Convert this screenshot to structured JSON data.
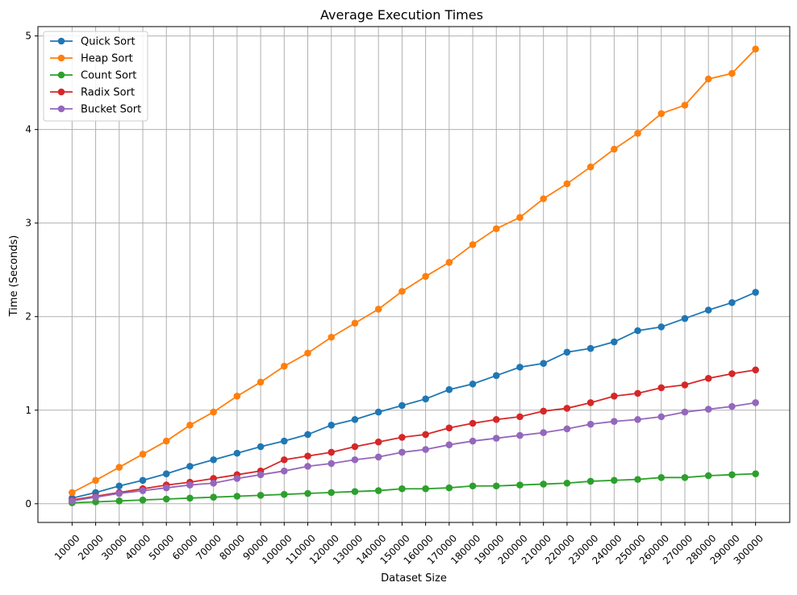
{
  "chart_data": {
    "type": "line",
    "title": "Average Execution Times",
    "xlabel": "Dataset Size",
    "ylabel": "Time (Seconds)",
    "x": [
      10000,
      20000,
      30000,
      40000,
      50000,
      60000,
      70000,
      80000,
      90000,
      100000,
      110000,
      120000,
      130000,
      140000,
      150000,
      160000,
      170000,
      180000,
      190000,
      200000,
      210000,
      220000,
      230000,
      240000,
      250000,
      260000,
      270000,
      280000,
      290000,
      300000
    ],
    "x_tick_labels": [
      "10000",
      "20000",
      "30000",
      "40000",
      "50000",
      "60000",
      "70000",
      "80000",
      "90000",
      "100000",
      "110000",
      "120000",
      "130000",
      "140000",
      "150000",
      "160000",
      "170000",
      "180000",
      "190000",
      "200000",
      "210000",
      "220000",
      "230000",
      "240000",
      "250000",
      "260000",
      "270000",
      "280000",
      "290000",
      "300000"
    ],
    "y_ticks": [
      0,
      1,
      2,
      3,
      4,
      5
    ],
    "y_tick_labels": [
      "0",
      "1",
      "2",
      "3",
      "4",
      "5"
    ],
    "ylim": [
      -0.2,
      5.1
    ],
    "grid": true,
    "legend_position": "top-left",
    "series": [
      {
        "name": "Quick Sort",
        "color": "#1f77b4",
        "values": [
          0.06,
          0.12,
          0.19,
          0.25,
          0.32,
          0.4,
          0.47,
          0.54,
          0.61,
          0.67,
          0.74,
          0.84,
          0.9,
          0.98,
          1.05,
          1.12,
          1.22,
          1.28,
          1.37,
          1.46,
          1.5,
          1.62,
          1.66,
          1.73,
          1.85,
          1.89,
          1.98,
          2.07,
          2.15,
          2.26
        ]
      },
      {
        "name": "Heap Sort",
        "color": "#ff7f0e",
        "values": [
          0.12,
          0.25,
          0.39,
          0.53,
          0.67,
          0.84,
          0.98,
          1.15,
          1.3,
          1.47,
          1.61,
          1.78,
          1.93,
          2.08,
          2.27,
          2.43,
          2.58,
          2.77,
          2.94,
          3.06,
          3.26,
          3.42,
          3.6,
          3.79,
          3.96,
          4.17,
          4.26,
          4.54,
          4.6,
          4.86
        ]
      },
      {
        "name": "Count Sort",
        "color": "#2ca02c",
        "values": [
          0.01,
          0.02,
          0.03,
          0.04,
          0.05,
          0.06,
          0.07,
          0.08,
          0.09,
          0.1,
          0.11,
          0.12,
          0.13,
          0.14,
          0.16,
          0.16,
          0.17,
          0.19,
          0.19,
          0.2,
          0.21,
          0.22,
          0.24,
          0.25,
          0.26,
          0.28,
          0.28,
          0.3,
          0.31,
          0.32
        ]
      },
      {
        "name": "Radix Sort",
        "color": "#d62728",
        "values": [
          0.04,
          0.08,
          0.12,
          0.16,
          0.2,
          0.23,
          0.27,
          0.31,
          0.35,
          0.47,
          0.51,
          0.55,
          0.61,
          0.66,
          0.71,
          0.74,
          0.81,
          0.86,
          0.9,
          0.93,
          0.99,
          1.02,
          1.08,
          1.15,
          1.18,
          1.24,
          1.27,
          1.34,
          1.39,
          1.43
        ]
      },
      {
        "name": "Bucket Sort",
        "color": "#9467bd",
        "values": [
          0.03,
          0.07,
          0.11,
          0.14,
          0.17,
          0.2,
          0.22,
          0.27,
          0.31,
          0.35,
          0.4,
          0.43,
          0.47,
          0.5,
          0.55,
          0.58,
          0.63,
          0.67,
          0.7,
          0.73,
          0.76,
          0.8,
          0.85,
          0.88,
          0.9,
          0.93,
          0.98,
          1.01,
          1.04,
          1.08
        ]
      }
    ]
  }
}
